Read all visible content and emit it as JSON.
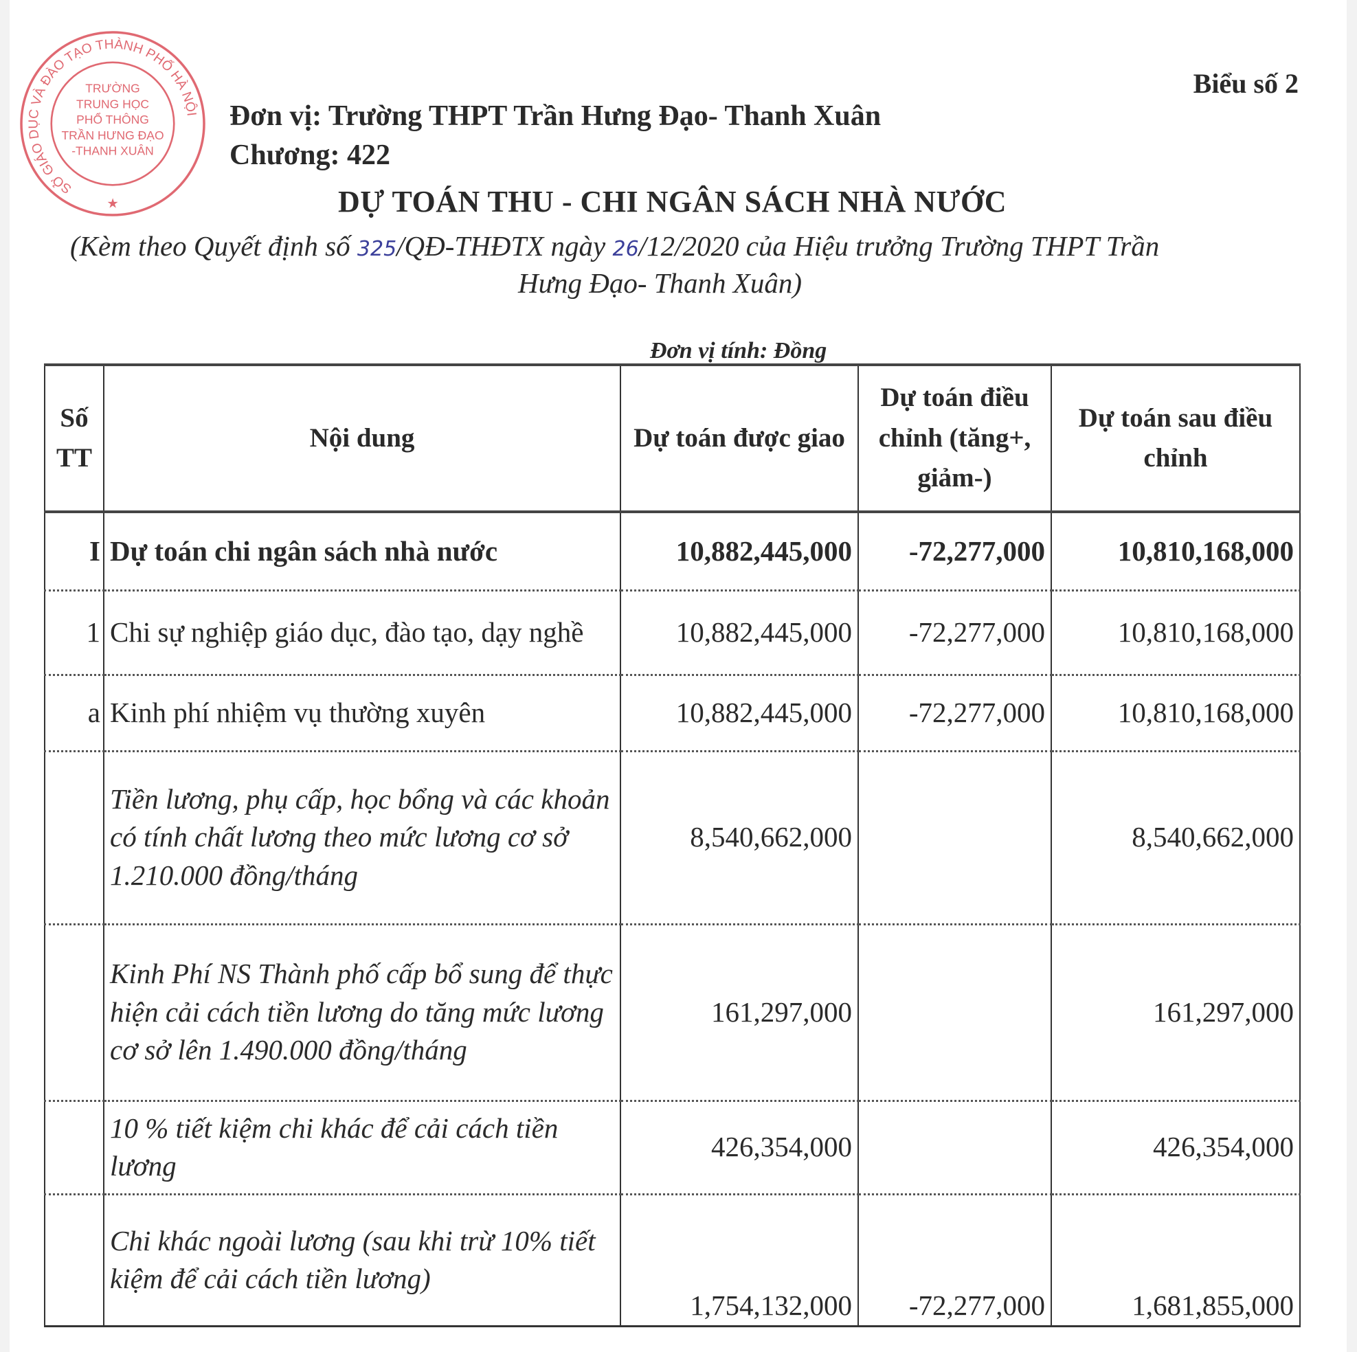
{
  "header": {
    "form_number": "Biểu số 2",
    "unit_line": "Đơn vị: Trường THPT Trần Hưng Đạo- Thanh Xuân",
    "chapter_line": "Chương: 422",
    "title": "DỰ TOÁN THU - CHI NGÂN SÁCH NHÀ NƯỚC",
    "subtitle_part1": "(Kèm theo Quyết định số ",
    "decision_number": "325",
    "subtitle_part2": "/QĐ-THĐTX ngày ",
    "decision_day": "26",
    "subtitle_part3": "/12/2020 của Hiệu trưởng Trường THPT Trần",
    "subtitle_line2": "Hưng Đạo- Thanh Xuân)",
    "unit_of_measure": "Đơn vị tính: Đồng"
  },
  "stamp": {
    "text_outer": "SỞ GIÁO DỤC VÀ ĐÀO TẠO THÀNH PHỐ HÀ NỘI",
    "text_inner": [
      "TRƯỜNG",
      "TRUNG HỌC",
      "PHỔ THÔNG",
      "TRẦN HƯNG ĐẠO",
      "-THANH XUÂN"
    ],
    "color": "#d9444f"
  },
  "table": {
    "columns": [
      "Số TT",
      "Nội dung",
      "Dự toán được giao",
      "Dự toán điều chỉnh (tăng+, giảm-)",
      "Dự toán sau điều chỉnh"
    ],
    "rows": [
      {
        "stt": "I",
        "content": "Dự toán chi ngân sách nhà nước",
        "assigned": "10,882,445,000",
        "adjustment": "-72,277,000",
        "after": "10,810,168,000",
        "style": "bold"
      },
      {
        "stt": "1",
        "content": "Chi sự nghiệp giáo dục, đào tạo, dạy nghề",
        "assigned": "10,882,445,000",
        "adjustment": "-72,277,000",
        "after": "10,810,168,000",
        "style": "normal"
      },
      {
        "stt": "a",
        "content": "Kinh phí nhiệm vụ thường xuyên",
        "assigned": "10,882,445,000",
        "adjustment": "-72,277,000",
        "after": "10,810,168,000",
        "style": "normal"
      },
      {
        "stt": "",
        "content": "Tiền lương, phụ cấp, học bổng và các khoản có tính chất lương theo mức lương cơ sở 1.210.000 đồng/tháng",
        "assigned": "8,540,662,000",
        "adjustment": "",
        "after": "8,540,662,000",
        "style": "italic"
      },
      {
        "stt": "",
        "content": "Kinh Phí NS Thành phố cấp bổ sung để thực hiện cải cách tiền lương do tăng mức lương cơ sở lên 1.490.000 đồng/tháng",
        "assigned": "161,297,000",
        "adjustment": "",
        "after": "161,297,000",
        "style": "italic"
      },
      {
        "stt": "",
        "content": "10 % tiết kiệm chi khác để cải cách tiền lương",
        "assigned": "426,354,000",
        "adjustment": "",
        "after": "426,354,000",
        "style": "italic"
      },
      {
        "stt": "",
        "content": "Chi khác ngoài lương (sau khi trừ 10% tiết kiệm để cải cách tiền lương)",
        "assigned": "1,754,132,000",
        "adjustment": "-72,277,000",
        "after": "1,681,855,000",
        "style": "italic"
      }
    ]
  }
}
